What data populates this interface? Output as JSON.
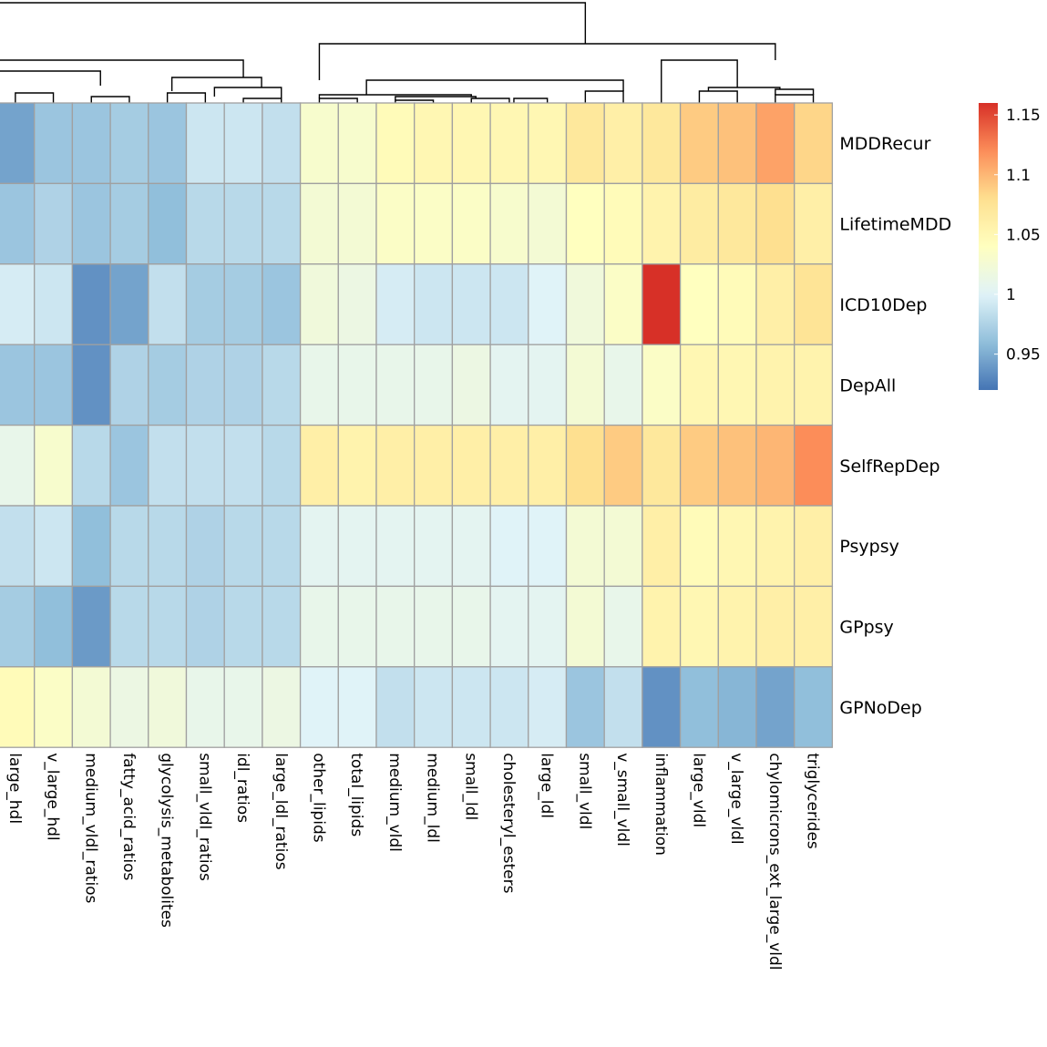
{
  "chart_data": {
    "type": "heatmap",
    "title": "",
    "rows": [
      "MDDRecur",
      "LifetimeMDD",
      "ICD10Dep",
      "DepAll",
      "SelfRepDep",
      "Psypsy",
      "GPpsy",
      "GPNoDep"
    ],
    "columns": [
      "large_hdl",
      "v_large_hdl",
      "medium_vldl_ratios",
      "fatty_acid_ratios",
      "glycolysis_metabolites",
      "small_vldl_ratios",
      "idl_ratios",
      "large_ldl_ratios",
      "other_lipids",
      "total_lipids",
      "medium_vldl",
      "medium_ldl",
      "small_ldl",
      "cholesteryl_esters",
      "large_ldl",
      "small_vldl",
      "v_small_vldl",
      "inflammation",
      "large_vldl",
      "v_large_vldl",
      "chylomicrons_ext_large_vldl",
      "triglycerides"
    ],
    "values": [
      [
        0.945,
        0.965,
        0.965,
        0.97,
        0.965,
        0.99,
        0.99,
        0.985,
        1.03,
        1.03,
        1.045,
        1.05,
        1.05,
        1.05,
        1.05,
        1.07,
        1.06,
        1.07,
        1.09,
        1.095,
        1.11,
        1.085
      ],
      [
        0.965,
        0.975,
        0.965,
        0.97,
        0.96,
        0.98,
        0.98,
        0.98,
        1.025,
        1.025,
        1.035,
        1.035,
        1.035,
        1.03,
        1.025,
        1.04,
        1.045,
        1.055,
        1.065,
        1.07,
        1.08,
        1.06
      ],
      [
        0.995,
        0.99,
        0.935,
        0.945,
        0.985,
        0.97,
        0.97,
        0.965,
        1.02,
        1.015,
        0.995,
        0.99,
        0.99,
        0.99,
        1.0,
        1.02,
        1.035,
        1.16,
        1.04,
        1.045,
        1.06,
        1.075
      ],
      [
        0.965,
        0.965,
        0.935,
        0.975,
        0.97,
        0.975,
        0.975,
        0.98,
        1.01,
        1.01,
        1.01,
        1.01,
        1.015,
        1.005,
        1.005,
        1.025,
        1.01,
        1.035,
        1.05,
        1.05,
        1.055,
        1.055
      ],
      [
        1.01,
        1.03,
        0.98,
        0.965,
        0.985,
        0.985,
        0.985,
        0.98,
        1.06,
        1.055,
        1.06,
        1.06,
        1.06,
        1.06,
        1.06,
        1.08,
        1.09,
        1.07,
        1.09,
        1.095,
        1.1,
        1.12
      ],
      [
        0.985,
        0.99,
        0.96,
        0.98,
        0.98,
        0.975,
        0.98,
        0.98,
        1.005,
        1.005,
        1.005,
        1.005,
        1.005,
        1.0,
        1.0,
        1.025,
        1.025,
        1.06,
        1.045,
        1.05,
        1.055,
        1.06
      ],
      [
        0.97,
        0.96,
        0.94,
        0.98,
        0.98,
        0.975,
        0.98,
        0.98,
        1.01,
        1.01,
        1.01,
        1.01,
        1.01,
        1.005,
        1.005,
        1.025,
        1.01,
        1.055,
        1.05,
        1.055,
        1.06,
        1.06
      ],
      [
        1.045,
        1.035,
        1.025,
        1.015,
        1.02,
        1.01,
        1.01,
        1.015,
        1.0,
        1.0,
        0.985,
        0.99,
        0.99,
        0.99,
        0.995,
        0.965,
        0.985,
        0.935,
        0.96,
        0.955,
        0.945,
        0.96
      ]
    ],
    "colorbar": {
      "min": 0.92,
      "max": 1.16,
      "ticks": [
        0.95,
        1,
        1.05,
        1.1,
        1.15
      ],
      "tick_labels": [
        "0.95",
        "1",
        "1.05",
        "1.1",
        "1.15"
      ],
      "colors": [
        "#4575b4",
        "#91bfdb",
        "#e0f3f8",
        "#ffffbf",
        "#fee090",
        "#fc8d59",
        "#d73027"
      ]
    },
    "cell_border_color": "#a0a0a0",
    "dendrogram_color": "#000000"
  }
}
